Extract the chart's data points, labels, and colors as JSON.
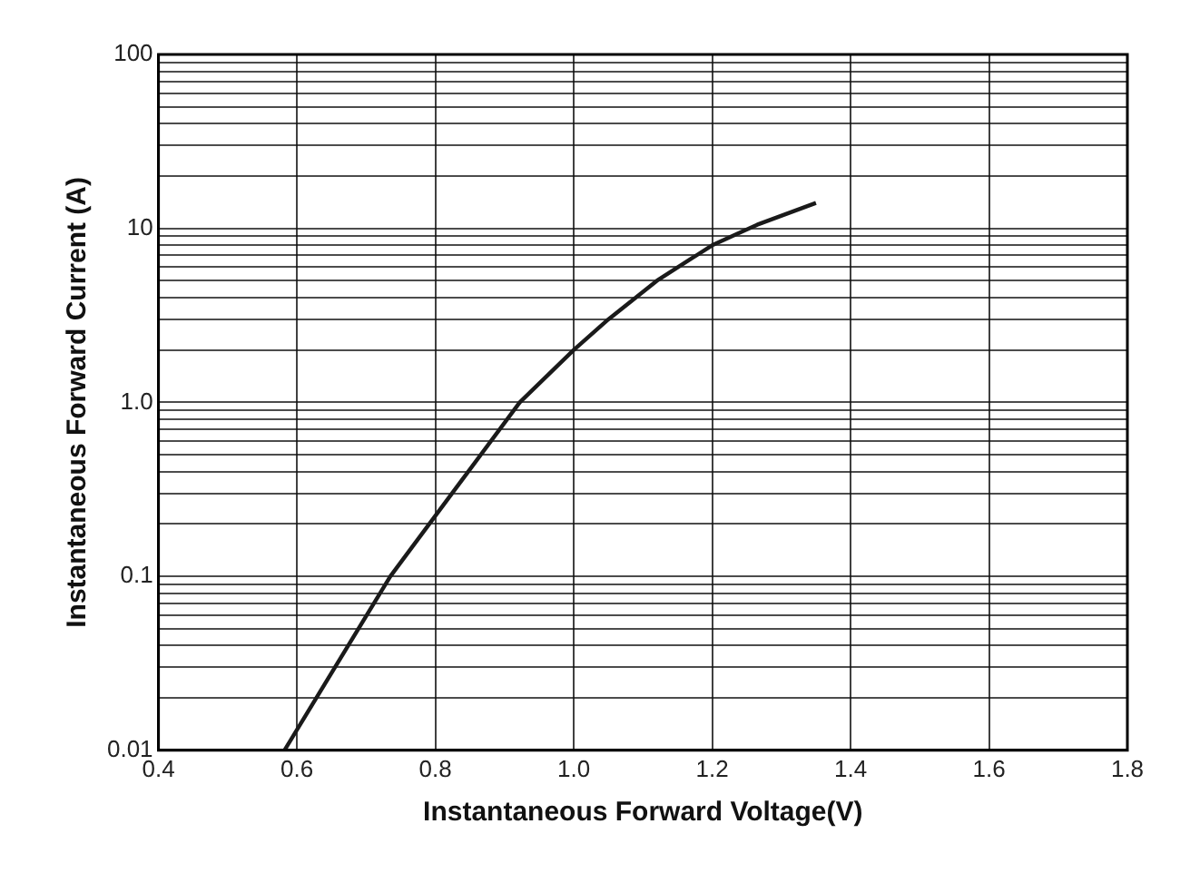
{
  "chart_data": {
    "type": "line",
    "xlabel": "Instantaneous Forward Voltage(V)",
    "ylabel": "Instantaneous Forward Current (A)",
    "log": "y",
    "grid": true,
    "legend": false,
    "marker": "none",
    "line_style": "solid",
    "xlim": [
      0.4,
      1.8
    ],
    "xticks": [
      0.4,
      0.6,
      0.8,
      {
        "value": 1.0,
        "label": "1.0"
      },
      1.2,
      1.4,
      1.6,
      1.8
    ],
    "ylim": [
      0.01,
      100
    ],
    "yticks": [
      0.01,
      {
        "value": 0.02,
        "label": null
      },
      {
        "value": 0.03,
        "label": null
      },
      {
        "value": 0.04,
        "label": null
      },
      {
        "value": 0.05,
        "label": null
      },
      {
        "value": 0.06,
        "label": null
      },
      {
        "value": 0.07,
        "label": null
      },
      {
        "value": 0.08,
        "label": null
      },
      {
        "value": 0.09,
        "label": null
      },
      0.1,
      {
        "value": 0.2,
        "label": null
      },
      {
        "value": 0.3,
        "label": null
      },
      {
        "value": 0.4,
        "label": null
      },
      {
        "value": 0.5,
        "label": null
      },
      {
        "value": 0.6,
        "label": null
      },
      {
        "value": 0.7,
        "label": null
      },
      {
        "value": 0.8,
        "label": null
      },
      {
        "value": 0.9,
        "label": null
      },
      {
        "value": 1,
        "label": "1.0"
      },
      {
        "value": 2,
        "label": null
      },
      {
        "value": 3,
        "label": null
      },
      {
        "value": 4,
        "label": null
      },
      {
        "value": 5,
        "label": null
      },
      {
        "value": 6,
        "label": null
      },
      {
        "value": 7,
        "label": null
      },
      {
        "value": 8,
        "label": null
      },
      {
        "value": 9,
        "label": null
      },
      10,
      {
        "value": 20,
        "label": null
      },
      {
        "value": 30,
        "label": null
      },
      {
        "value": 40,
        "label": null
      },
      {
        "value": 50,
        "label": null
      },
      {
        "value": 60,
        "label": null
      },
      {
        "value": 70,
        "label": null
      },
      {
        "value": 80,
        "label": null
      },
      {
        "value": 90,
        "label": null
      },
      100
    ],
    "series": [
      {
        "color": "#1a1a1a",
        "x": [
          0.582,
          0.735,
          0.922,
          1.0,
          1.05,
          1.12,
          1.2,
          1.265,
          1.35
        ],
        "values": [
          0.01,
          0.1,
          1.0,
          2,
          3,
          5,
          8,
          10.5,
          14
        ]
      }
    ]
  }
}
